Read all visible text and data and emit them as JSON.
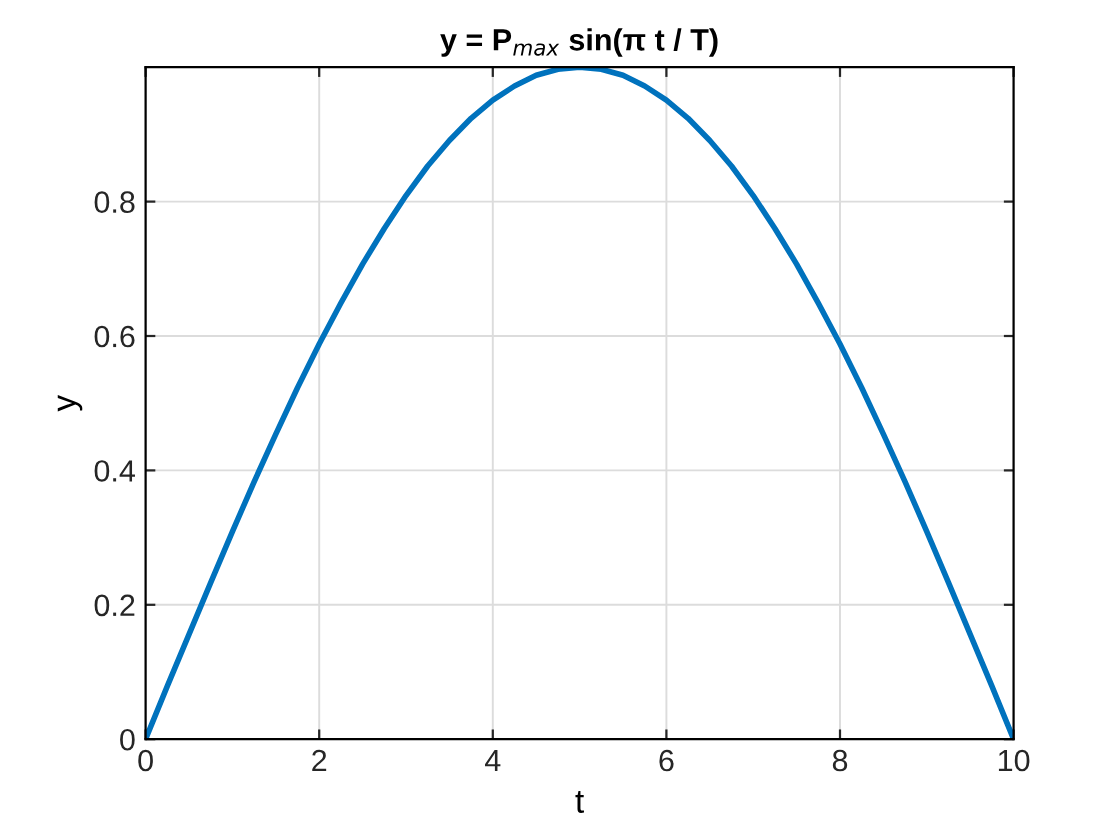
{
  "chart_data": {
    "type": "line",
    "title": "y = P$_{max}$ sin(π t / T)",
    "xlabel": "t",
    "ylabel": "y",
    "x": [
      0,
      0.25,
      0.5,
      0.75,
      1,
      1.25,
      1.5,
      1.75,
      2,
      2.25,
      2.5,
      2.75,
      3,
      3.25,
      3.5,
      3.75,
      4,
      4.25,
      4.5,
      4.75,
      5,
      5.25,
      5.5,
      5.75,
      6,
      6.25,
      6.5,
      6.75,
      7,
      7.25,
      7.5,
      7.75,
      8,
      8.25,
      8.5,
      8.75,
      9,
      9.25,
      9.5,
      9.75,
      10
    ],
    "series": [
      {
        "color": "#0072bd",
        "values": [
          0,
          0.079,
          0.156,
          0.233,
          0.309,
          0.383,
          0.454,
          0.523,
          0.588,
          0.649,
          0.707,
          0.76,
          0.809,
          0.853,
          0.891,
          0.924,
          0.951,
          0.972,
          0.988,
          0.997,
          1,
          0.997,
          0.988,
          0.972,
          0.951,
          0.924,
          0.891,
          0.853,
          0.809,
          0.76,
          0.707,
          0.649,
          0.588,
          0.523,
          0.454,
          0.383,
          0.309,
          0.233,
          0.156,
          0.079,
          0
        ]
      }
    ],
    "xlim": [
      0,
      10
    ],
    "ylim": [
      0,
      1
    ],
    "xticks": [
      0,
      2,
      4,
      6,
      8,
      10
    ],
    "yticks": [
      0,
      0.2,
      0.4,
      0.6,
      0.8
    ],
    "grid": true,
    "marker": "none",
    "line_style": "solid"
  }
}
